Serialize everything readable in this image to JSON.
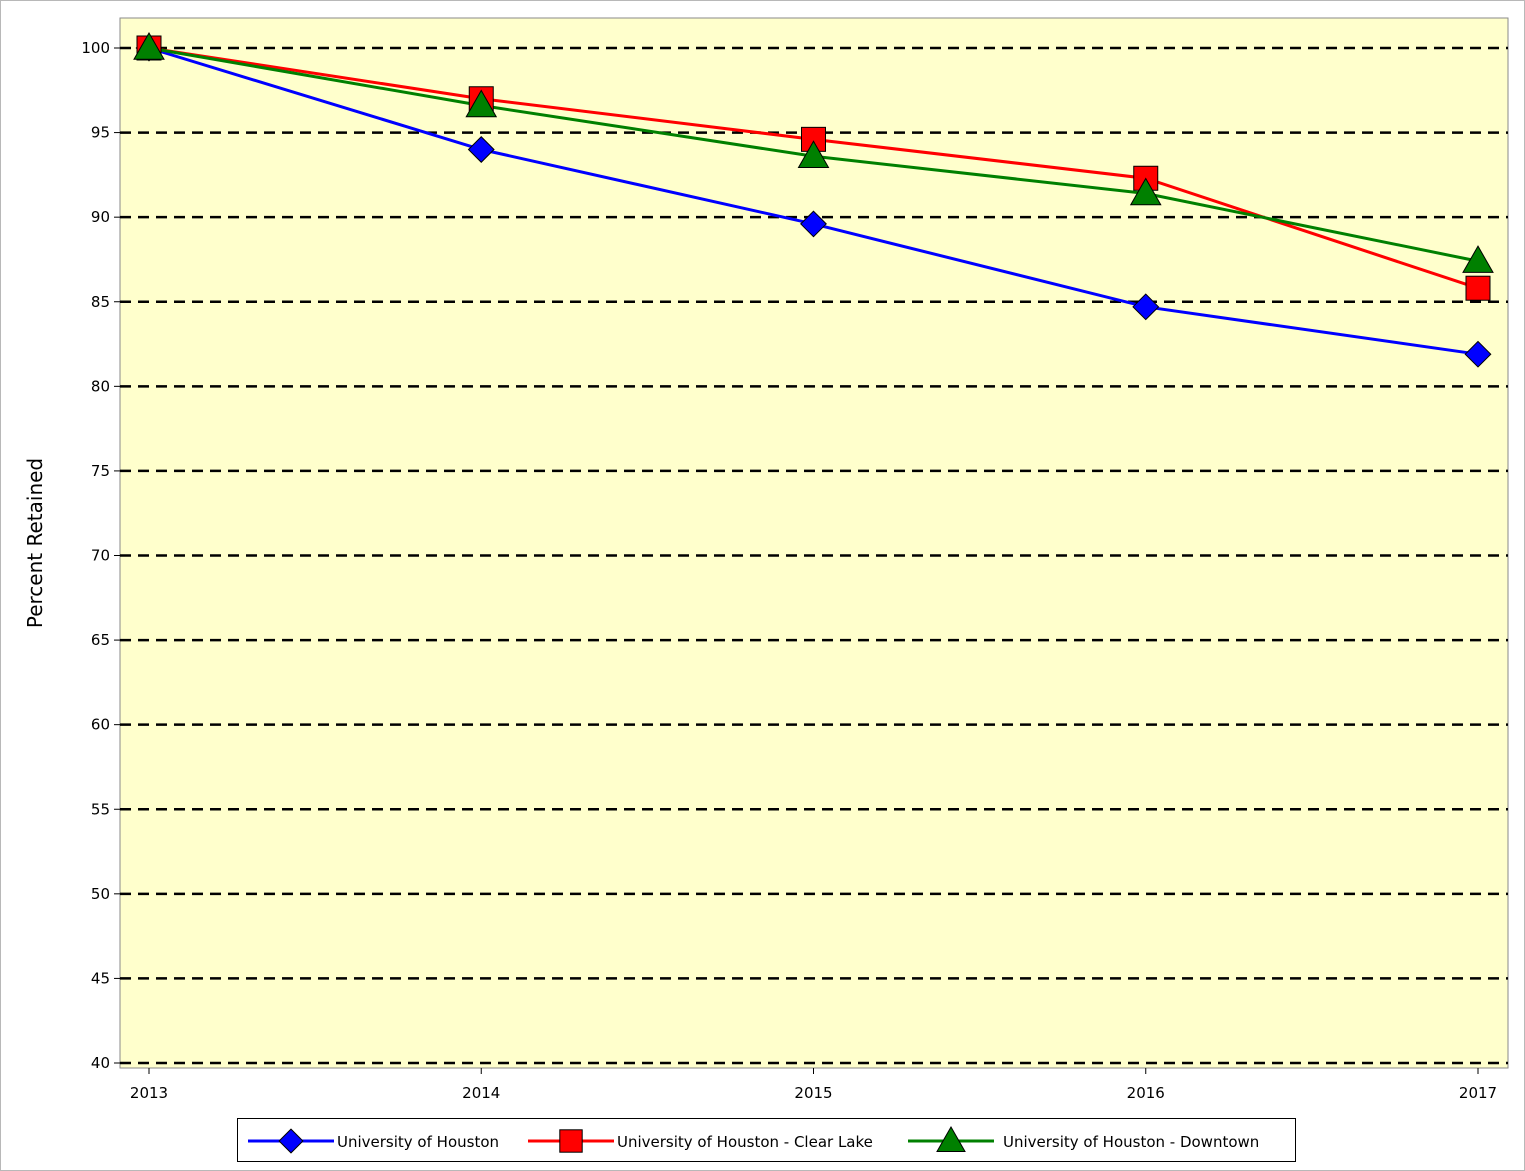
{
  "chart_data": {
    "type": "line",
    "title": "",
    "xlabel": "",
    "ylabel": "Percent Retained",
    "categories": [
      "2013",
      "2014",
      "2015",
      "2016",
      "2017"
    ],
    "ylim": [
      40,
      100
    ],
    "yticks": [
      40,
      45,
      50,
      55,
      60,
      65,
      70,
      75,
      80,
      85,
      90,
      95,
      100
    ],
    "grid": "horizontal-dashed",
    "legend_position": "bottom",
    "plot_background": "#ffffcc",
    "series": [
      {
        "name": "University of Houston",
        "color": "#0000ff",
        "marker": "diamond",
        "values": [
          100,
          94.0,
          89.6,
          84.7,
          81.9
        ]
      },
      {
        "name": "University of Houston - Clear Lake",
        "color": "#ff0000",
        "marker": "square",
        "values": [
          100,
          97.0,
          94.6,
          92.3,
          85.8
        ]
      },
      {
        "name": "University of Houston - Downtown",
        "color": "#008000",
        "marker": "triangle",
        "values": [
          100,
          96.6,
          93.6,
          91.4,
          87.4
        ]
      }
    ]
  }
}
